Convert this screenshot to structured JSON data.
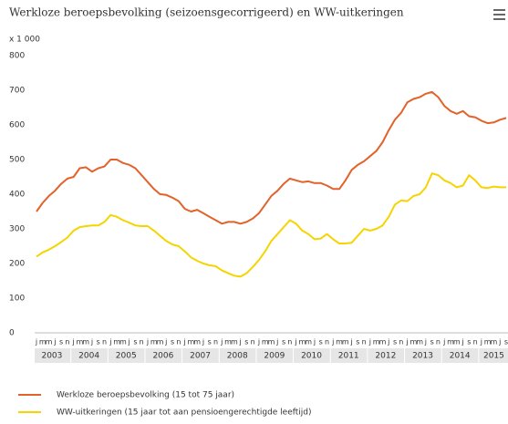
{
  "chart_data": {
    "type": "line",
    "title": "Werkloze beroepsbevolking (seizoensgecorrigeerd) en WW-uitkeringen",
    "y_unit_label": "x 1 000",
    "categories": [
      "j",
      "m",
      "m",
      "j",
      "s",
      "n",
      "j",
      "m",
      "m",
      "j",
      "s",
      "n",
      "j",
      "m",
      "m",
      "j",
      "s",
      "n",
      "j",
      "m",
      "m",
      "j",
      "s",
      "n",
      "j",
      "m",
      "m",
      "j",
      "s",
      "n",
      "j",
      "m",
      "m",
      "j",
      "s",
      "n",
      "j",
      "m",
      "m",
      "j",
      "s",
      "n",
      "j",
      "m",
      "m",
      "j",
      "s",
      "n",
      "j",
      "m",
      "m",
      "j",
      "s",
      "n",
      "j",
      "m",
      "m",
      "j",
      "s",
      "n",
      "j",
      "m",
      "m",
      "j",
      "s",
      "n",
      "j",
      "m",
      "m",
      "j",
      "s",
      "n",
      "j",
      "m",
      "m",
      "j",
      "s"
    ],
    "years": [
      "2003",
      "2004",
      "2005",
      "2006",
      "2007",
      "2008",
      "2009",
      "2010",
      "2011",
      "2012",
      "2013",
      "2014",
      "2015"
    ],
    "ylim": [
      0,
      800
    ],
    "yticks": [
      0,
      100,
      200,
      300,
      400,
      500,
      600,
      700,
      800
    ],
    "grid": false,
    "series": [
      {
        "name": "Werkloze beroepsbevolking (15 tot 75 jaar)",
        "color": "#e2622a",
        "values": [
          350,
          375,
          395,
          410,
          430,
          445,
          450,
          475,
          478,
          465,
          475,
          480,
          500,
          500,
          490,
          485,
          475,
          455,
          435,
          415,
          400,
          398,
          390,
          380,
          358,
          350,
          355,
          345,
          335,
          325,
          315,
          320,
          320,
          315,
          320,
          330,
          345,
          370,
          395,
          410,
          430,
          445,
          440,
          435,
          437,
          432,
          432,
          425,
          415,
          415,
          440,
          470,
          485,
          495,
          510,
          525,
          550,
          585,
          615,
          635,
          665,
          675,
          680,
          690,
          695,
          680,
          655,
          640,
          632,
          640,
          625,
          622,
          612,
          605,
          607,
          615,
          620
        ]
      },
      {
        "name": "WW-uitkeringen (15 jaar tot aan pensioengerechtigde leeftijd)",
        "color": "#f5d400",
        "values": [
          220,
          232,
          240,
          250,
          262,
          275,
          295,
          305,
          308,
          310,
          310,
          320,
          340,
          335,
          325,
          318,
          310,
          308,
          308,
          295,
          280,
          265,
          255,
          250,
          235,
          218,
          208,
          200,
          195,
          192,
          180,
          172,
          165,
          162,
          172,
          190,
          210,
          235,
          265,
          285,
          305,
          325,
          315,
          295,
          285,
          270,
          272,
          285,
          270,
          258,
          258,
          260,
          280,
          300,
          295,
          300,
          310,
          335,
          370,
          382,
          380,
          395,
          400,
          420,
          460,
          455,
          440,
          432,
          420,
          425,
          455,
          440,
          420,
          418,
          422,
          420,
          420
        ]
      }
    ]
  }
}
